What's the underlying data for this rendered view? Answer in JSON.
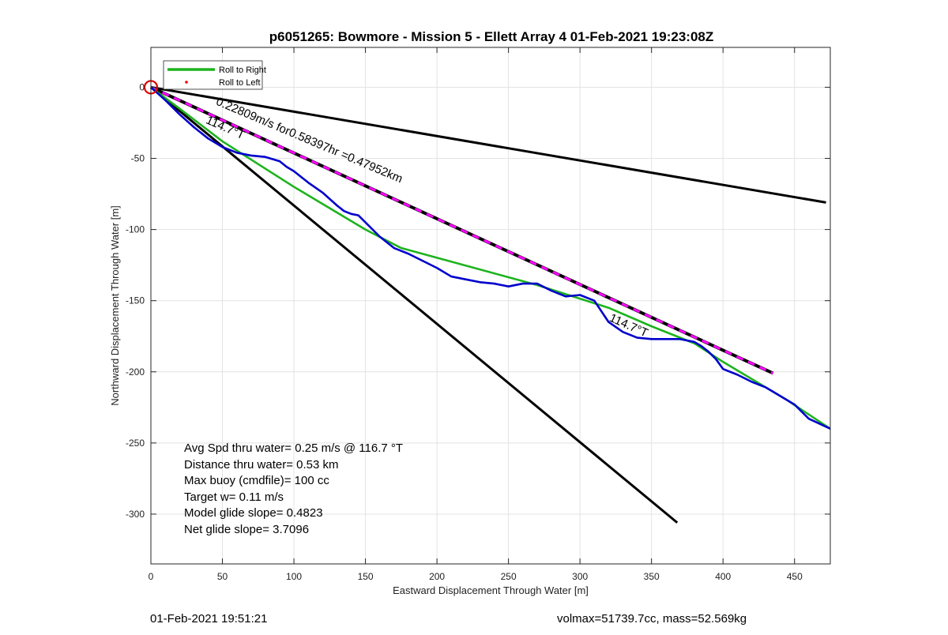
{
  "chart_data": {
    "type": "line",
    "title": "p6051265: Bowmore - Mission 5 - Ellett Array 4 01-Feb-2021 19:23:08Z",
    "xlabel": "Eastward Displacement Through Water [m]",
    "ylabel": "Northward Displacement Through Water [m]",
    "xlim": [
      0,
      475
    ],
    "ylim": [
      -335,
      28
    ],
    "xticks": [
      0,
      50,
      100,
      150,
      200,
      250,
      300,
      350,
      400,
      450
    ],
    "yticks": [
      0,
      -50,
      -100,
      -150,
      -200,
      -250,
      -300
    ],
    "grid": true,
    "legend_position": "top-left",
    "legend": [
      {
        "label": "Roll to Right",
        "color": "#1db31d",
        "style": "line"
      },
      {
        "label": "Roll to Left",
        "color": "#ff0000",
        "style": "dot"
      }
    ],
    "series": [
      {
        "name": "Roll to Right",
        "color": "#1db31d",
        "x": [
          0,
          20,
          50,
          100,
          150,
          175,
          270,
          320,
          350,
          380,
          400,
          445,
          475
        ],
        "y": [
          0,
          -15,
          -38,
          -70,
          -100,
          -113,
          -139,
          -155,
          -168,
          -180,
          -193,
          -220,
          -240
        ]
      },
      {
        "name": "",
        "color": "#0000cc",
        "x": [
          0,
          10,
          20,
          30,
          40,
          50,
          60,
          70,
          80,
          90,
          95,
          100,
          110,
          120,
          130,
          135,
          140,
          145,
          150,
          160,
          170,
          180,
          190,
          200,
          210,
          220,
          230,
          240,
          250,
          260,
          270,
          280,
          290,
          300,
          310,
          320,
          330,
          340,
          350,
          360,
          370,
          380,
          385,
          390,
          395,
          400,
          410,
          420,
          430,
          440,
          450,
          460,
          475
        ],
        "y": [
          0,
          -9,
          -19,
          -28,
          -36,
          -42,
          -46,
          -48,
          -49,
          -52,
          -56,
          -59,
          -67,
          -74,
          -83,
          -87,
          -89,
          -90,
          -95,
          -105,
          -113,
          -117,
          -122,
          -127,
          -133,
          -135,
          -137,
          -138,
          -140,
          -138,
          -138,
          -143,
          -147,
          -146,
          -150,
          -165,
          -172,
          -176,
          -177,
          -177,
          -177,
          -179,
          -182,
          -186,
          -191,
          -198,
          -202,
          -207,
          -211,
          -217,
          -223,
          -233,
          -240
        ]
      },
      {
        "name": "",
        "color": "#ff00ff",
        "style": "dashed-over-black",
        "x": [
          0,
          435
        ],
        "y": [
          0,
          -201
        ]
      },
      {
        "name": "",
        "color": "#000000",
        "x": [
          0,
          472
        ],
        "y": [
          0,
          -81
        ]
      },
      {
        "name": "",
        "color": "#000000",
        "x": [
          0,
          368
        ],
        "y": [
          0,
          -306
        ]
      }
    ],
    "annotations": [
      {
        "text": "0.22809m/s for0.58397hr =0.47952km",
        "x": 45,
        "y": -12,
        "angle": 23
      },
      {
        "text": "114.7°T",
        "x": 38,
        "y": -25,
        "angle": 24
      },
      {
        "text": "114.7°T",
        "x": 320,
        "y": -164,
        "angle": 24
      }
    ],
    "origin_marker": {
      "x": 0,
      "y": 0,
      "color": "#dd0000"
    },
    "stats": [
      "Avg Spd thru water=  0.25 m/s @ 116.7 °T",
      "Distance thru water=  0.53 km",
      "Max buoy (cmdfile)= 100 cc",
      "Target w= 0.11 m/s",
      "Model glide slope= 0.4823",
      "Net glide slope= 3.7096"
    ]
  },
  "footer": {
    "left": "01-Feb-2021 19:51:21",
    "right": "volmax=51739.7cc, mass=52.569kg"
  }
}
